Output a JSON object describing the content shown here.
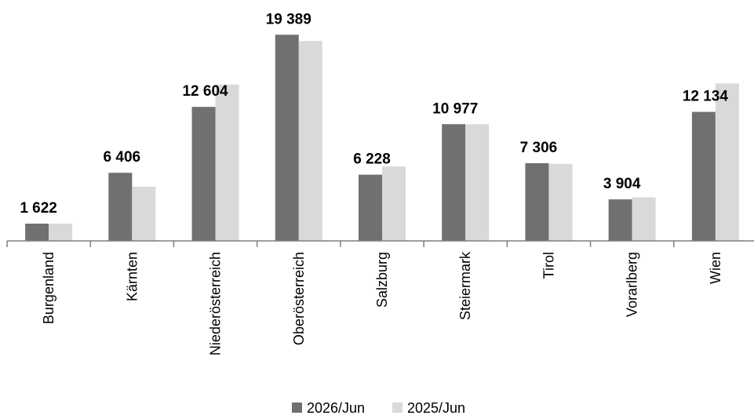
{
  "chart_data": {
    "type": "bar",
    "title": "",
    "xlabel": "",
    "ylabel": "",
    "categories": [
      "Burgenland",
      "Kärnten",
      "Niederösterreich",
      "Oberösterreich",
      "Salzburg",
      "Steiermark",
      "Tirol",
      "Vorarlberg",
      "Wien"
    ],
    "series": [
      {
        "name": "2026/Jun",
        "color": "#707070",
        "values": [
          1622,
          6406,
          12604,
          19389,
          6228,
          10977,
          7306,
          3904,
          12134
        ]
      },
      {
        "name": "2025/Jun",
        "color": "#d9d9d9",
        "values": [
          1622,
          5100,
          14700,
          18800,
          7000,
          10977,
          7250,
          4100,
          14800
        ]
      }
    ],
    "data_labels": [
      "1 622",
      "6 406",
      "12 604",
      "19 389",
      "6 228",
      "10 977",
      "7 306",
      "3 904",
      "12 134"
    ],
    "ylim": [
      0,
      20000
    ],
    "grid": false,
    "legend_position": "bottom"
  }
}
